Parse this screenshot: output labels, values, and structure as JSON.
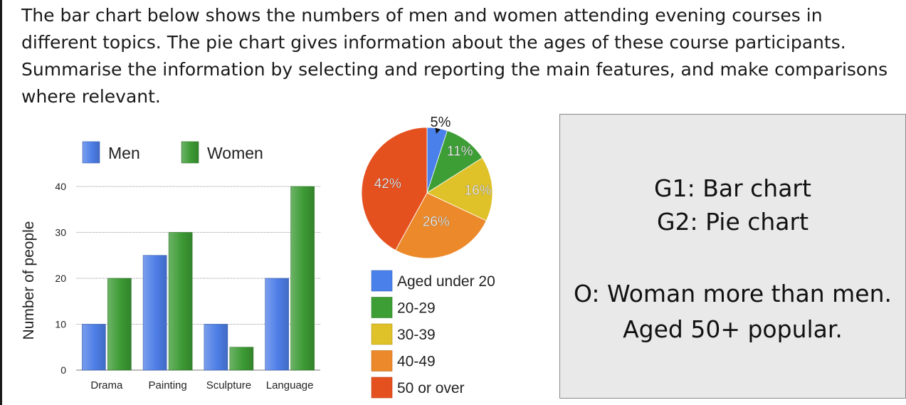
{
  "prompt": {
    "lines": [
      "The bar chart below shows the numbers of men and women attending evening courses in",
      "different topics. The pie chart gives information about the ages of these course participants.",
      "Summarise the information by selecting and reporting the main features, and make comparisons",
      "where relevant."
    ]
  },
  "notes": {
    "g1": "G1: Bar chart",
    "g2": "G2: Pie chart",
    "o_line1": "O: Woman more than men.",
    "o_line2": "Aged 50+ popular."
  },
  "chart_data": [
    {
      "type": "bar",
      "categories": [
        "Drama",
        "Painting",
        "Sculpture",
        "Language"
      ],
      "series": [
        {
          "name": "Men",
          "values": [
            10,
            25,
            10,
            20
          ],
          "color": "#4d7ee6"
        },
        {
          "name": "Women",
          "values": [
            20,
            30,
            5,
            40
          ],
          "color": "#3c9a34"
        }
      ],
      "ylabel": "Number of people",
      "ylim": [
        0,
        40
      ],
      "yticks": [
        0,
        10,
        20,
        30,
        40
      ],
      "grid": true,
      "legend": "top"
    },
    {
      "type": "pie",
      "slices": [
        {
          "label": "Aged under 20",
          "value": 5,
          "text": "5%",
          "color": "#4a80ea"
        },
        {
          "label": "20-29",
          "value": 11,
          "text": "11%",
          "color": "#3d9e36"
        },
        {
          "label": "30-39",
          "value": 16,
          "text": "16%",
          "color": "#dfc12a"
        },
        {
          "label": "40-49",
          "value": 26,
          "text": "26%",
          "color": "#ec8a2b"
        },
        {
          "label": "50 or over",
          "value": 42,
          "text": "42%",
          "color": "#e5501f"
        }
      ],
      "legend": "bottom"
    }
  ]
}
